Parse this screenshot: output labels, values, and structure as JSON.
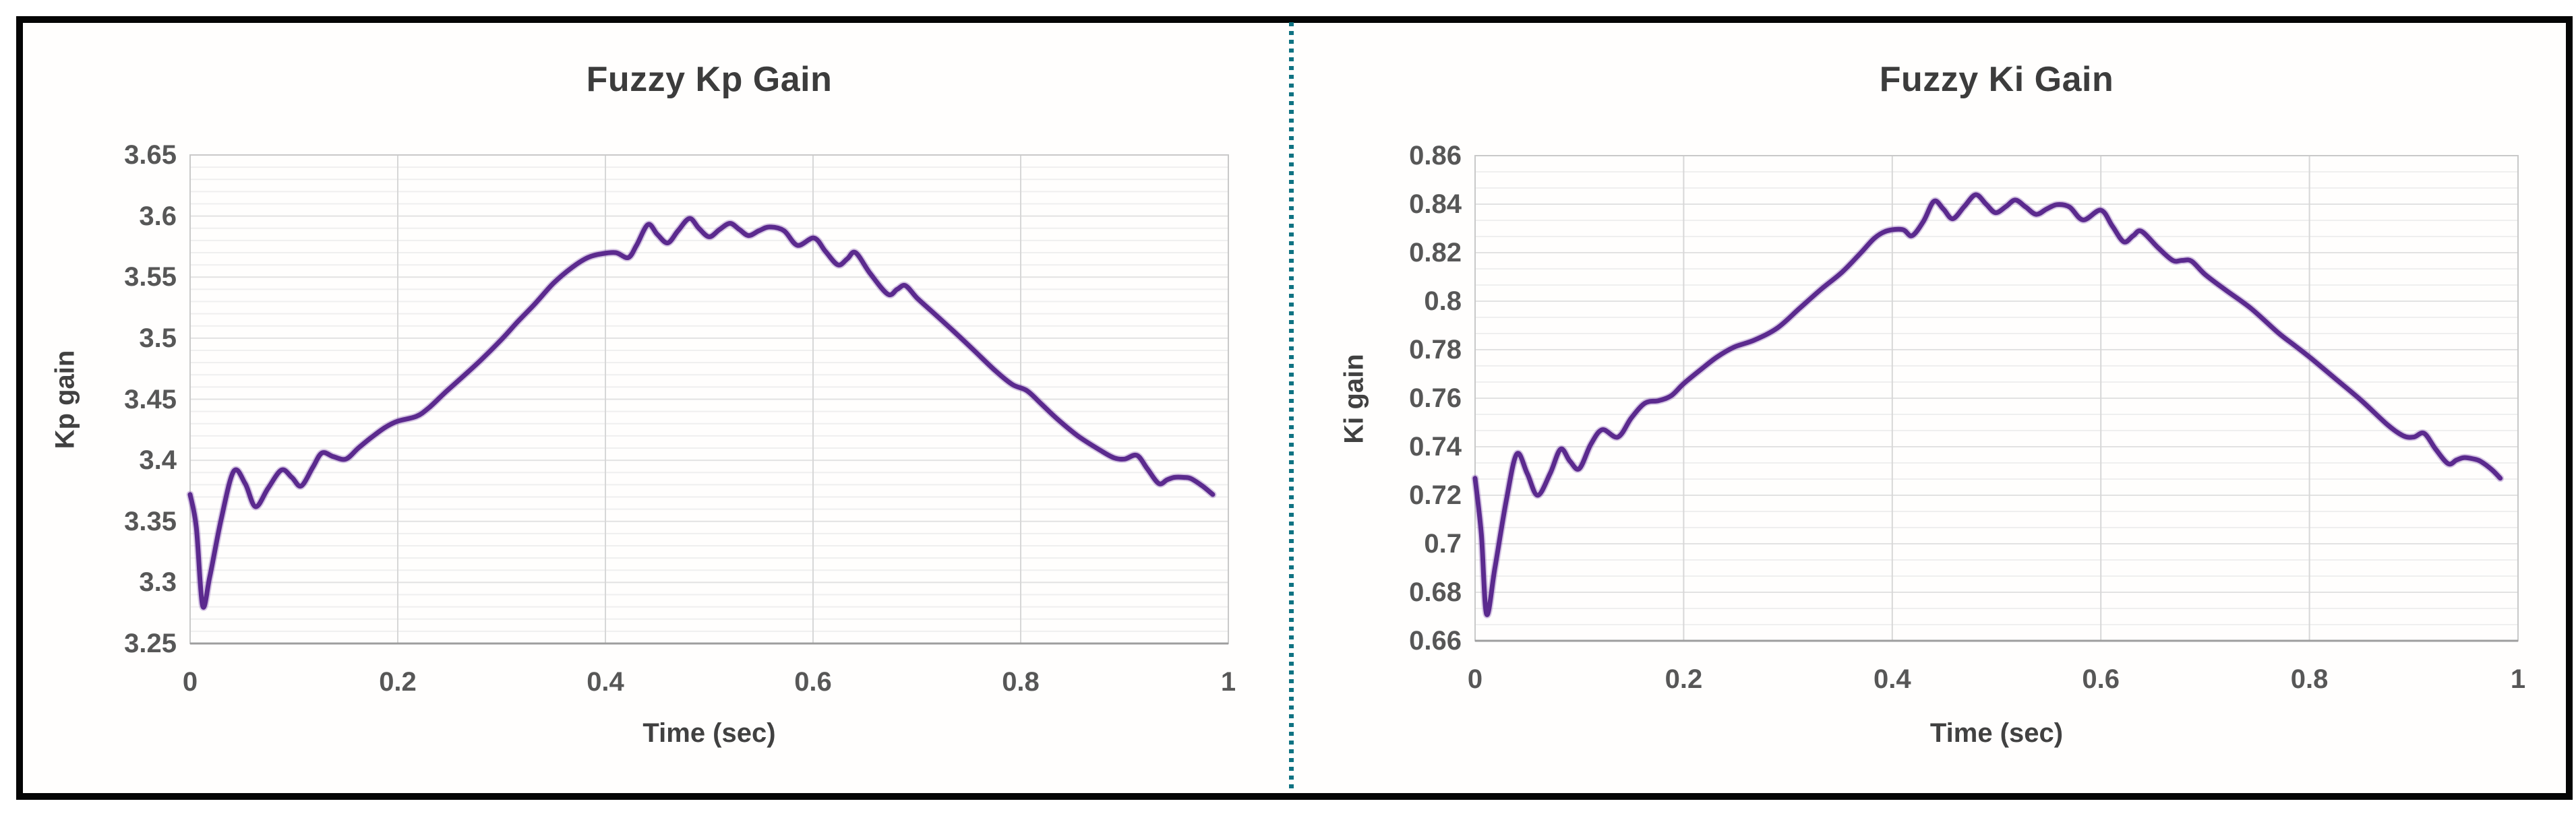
{
  "figure": {
    "background": "#ffffff",
    "border_color": "#050505",
    "divider_color": "#0f7282",
    "divider_style": "dotted-vertical"
  },
  "chart_data": [
    {
      "type": "line",
      "title": "Fuzzy Kp Gain",
      "xlabel": "Time (sec)",
      "ylabel": "Kp gain",
      "xlim": [
        0,
        1
      ],
      "ylim": [
        3.25,
        3.65
      ],
      "x_major_ticks": [
        0,
        0.2,
        0.4,
        0.6,
        0.8,
        1
      ],
      "x_tick_labels": [
        "0",
        "0.2",
        "0.4",
        "0.6",
        "0.8",
        "1"
      ],
      "y_major_step": 0.05,
      "y_minor_divisions": 5,
      "y_tick_labels_top_to_bottom": [
        "3.65",
        "3.6",
        "3.55",
        "3.5",
        "3.45",
        "3.4",
        "3.35",
        "3.3",
        "3.25"
      ],
      "grid": "major+minor horizontal, major vertical",
      "legend": "none",
      "line_color": "#5b2a8e",
      "points": [
        [
          0.0,
          3.372
        ],
        [
          0.006,
          3.345
        ],
        [
          0.012,
          3.281
        ],
        [
          0.019,
          3.305
        ],
        [
          0.03,
          3.352
        ],
        [
          0.042,
          3.391
        ],
        [
          0.053,
          3.381
        ],
        [
          0.063,
          3.362
        ],
        [
          0.075,
          3.377
        ],
        [
          0.088,
          3.392
        ],
        [
          0.098,
          3.386
        ],
        [
          0.107,
          3.379
        ],
        [
          0.118,
          3.394
        ],
        [
          0.127,
          3.406
        ],
        [
          0.138,
          3.403
        ],
        [
          0.15,
          3.401
        ],
        [
          0.162,
          3.41
        ],
        [
          0.175,
          3.419
        ],
        [
          0.188,
          3.427
        ],
        [
          0.2,
          3.432
        ],
        [
          0.218,
          3.436
        ],
        [
          0.23,
          3.443
        ],
        [
          0.245,
          3.455
        ],
        [
          0.262,
          3.468
        ],
        [
          0.28,
          3.482
        ],
        [
          0.3,
          3.499
        ],
        [
          0.315,
          3.513
        ],
        [
          0.332,
          3.528
        ],
        [
          0.35,
          3.545
        ],
        [
          0.368,
          3.558
        ],
        [
          0.383,
          3.566
        ],
        [
          0.396,
          3.569
        ],
        [
          0.41,
          3.57
        ],
        [
          0.422,
          3.566
        ],
        [
          0.43,
          3.576
        ],
        [
          0.441,
          3.593
        ],
        [
          0.45,
          3.585
        ],
        [
          0.46,
          3.578
        ],
        [
          0.47,
          3.588
        ],
        [
          0.481,
          3.598
        ],
        [
          0.49,
          3.59
        ],
        [
          0.5,
          3.583
        ],
        [
          0.51,
          3.589
        ],
        [
          0.52,
          3.594
        ],
        [
          0.529,
          3.589
        ],
        [
          0.538,
          3.584
        ],
        [
          0.548,
          3.588
        ],
        [
          0.558,
          3.591
        ],
        [
          0.572,
          3.588
        ],
        [
          0.585,
          3.576
        ],
        [
          0.601,
          3.582
        ],
        [
          0.612,
          3.571
        ],
        [
          0.624,
          3.56
        ],
        [
          0.633,
          3.565
        ],
        [
          0.641,
          3.57
        ],
        [
          0.655,
          3.553
        ],
        [
          0.672,
          3.536
        ],
        [
          0.681,
          3.54
        ],
        [
          0.689,
          3.543
        ],
        [
          0.7,
          3.533
        ],
        [
          0.713,
          3.523
        ],
        [
          0.735,
          3.506
        ],
        [
          0.755,
          3.49
        ],
        [
          0.776,
          3.473
        ],
        [
          0.792,
          3.462
        ],
        [
          0.806,
          3.457
        ],
        [
          0.82,
          3.446
        ],
        [
          0.835,
          3.434
        ],
        [
          0.855,
          3.42
        ],
        [
          0.877,
          3.408
        ],
        [
          0.89,
          3.402
        ],
        [
          0.9,
          3.401
        ],
        [
          0.912,
          3.404
        ],
        [
          0.922,
          3.393
        ],
        [
          0.933,
          3.381
        ],
        [
          0.941,
          3.384
        ],
        [
          0.948,
          3.386
        ],
        [
          0.957,
          3.386
        ],
        [
          0.964,
          3.385
        ],
        [
          0.975,
          3.379
        ],
        [
          0.985,
          3.372
        ]
      ]
    },
    {
      "type": "line",
      "title": "Fuzzy Ki Gain",
      "xlabel": "Time (sec)",
      "ylabel": "Ki gain",
      "xlim": [
        0,
        1
      ],
      "ylim": [
        0.66,
        0.86
      ],
      "x_major_ticks": [
        0,
        0.2,
        0.4,
        0.6,
        0.8,
        1
      ],
      "x_tick_labels": [
        "0",
        "0.2",
        "0.4",
        "0.6",
        "0.8",
        "1"
      ],
      "y_major_step": 0.02,
      "y_minor_divisions": 3,
      "y_tick_labels_top_to_bottom": [
        "0.86",
        "0.84",
        "0.82",
        "0.8",
        "0.78",
        "0.76",
        "0.74",
        "0.72",
        "0.7",
        "0.68",
        "0.66"
      ],
      "grid": "major+minor horizontal, major vertical",
      "legend": "none",
      "line_color": "#5b2a8e",
      "points": [
        [
          0.0,
          0.727
        ],
        [
          0.006,
          0.704
        ],
        [
          0.011,
          0.671
        ],
        [
          0.019,
          0.69
        ],
        [
          0.03,
          0.718
        ],
        [
          0.04,
          0.737
        ],
        [
          0.05,
          0.729
        ],
        [
          0.06,
          0.72
        ],
        [
          0.072,
          0.729
        ],
        [
          0.082,
          0.739
        ],
        [
          0.091,
          0.734
        ],
        [
          0.1,
          0.731
        ],
        [
          0.111,
          0.741
        ],
        [
          0.122,
          0.747
        ],
        [
          0.137,
          0.744
        ],
        [
          0.15,
          0.752
        ],
        [
          0.163,
          0.758
        ],
        [
          0.176,
          0.759
        ],
        [
          0.188,
          0.761
        ],
        [
          0.2,
          0.766
        ],
        [
          0.217,
          0.772
        ],
        [
          0.232,
          0.777
        ],
        [
          0.248,
          0.781
        ],
        [
          0.268,
          0.784
        ],
        [
          0.29,
          0.789
        ],
        [
          0.311,
          0.797
        ],
        [
          0.332,
          0.805
        ],
        [
          0.352,
          0.812
        ],
        [
          0.37,
          0.82
        ],
        [
          0.383,
          0.826
        ],
        [
          0.395,
          0.829
        ],
        [
          0.41,
          0.8295
        ],
        [
          0.419,
          0.827
        ],
        [
          0.43,
          0.833
        ],
        [
          0.44,
          0.8412
        ],
        [
          0.449,
          0.838
        ],
        [
          0.458,
          0.834
        ],
        [
          0.469,
          0.839
        ],
        [
          0.48,
          0.8439
        ],
        [
          0.49,
          0.84
        ],
        [
          0.499,
          0.8365
        ],
        [
          0.509,
          0.839
        ],
        [
          0.518,
          0.8417
        ],
        [
          0.528,
          0.8388
        ],
        [
          0.538,
          0.8358
        ],
        [
          0.548,
          0.838
        ],
        [
          0.558,
          0.8398
        ],
        [
          0.57,
          0.8388
        ],
        [
          0.583,
          0.8335
        ],
        [
          0.6,
          0.8375
        ],
        [
          0.611,
          0.831
        ],
        [
          0.622,
          0.8245
        ],
        [
          0.631,
          0.827
        ],
        [
          0.639,
          0.8288
        ],
        [
          0.655,
          0.822
        ],
        [
          0.669,
          0.8168
        ],
        [
          0.678,
          0.8168
        ],
        [
          0.687,
          0.8165
        ],
        [
          0.7,
          0.811
        ],
        [
          0.719,
          0.8048
        ],
        [
          0.744,
          0.797
        ],
        [
          0.77,
          0.787
        ],
        [
          0.785,
          0.782
        ],
        [
          0.8,
          0.777
        ],
        [
          0.825,
          0.768
        ],
        [
          0.85,
          0.759
        ],
        [
          0.875,
          0.749
        ],
        [
          0.89,
          0.7445
        ],
        [
          0.9,
          0.744
        ],
        [
          0.91,
          0.7455
        ],
        [
          0.921,
          0.739
        ],
        [
          0.933,
          0.733
        ],
        [
          0.941,
          0.7345
        ],
        [
          0.948,
          0.7355
        ],
        [
          0.957,
          0.735
        ],
        [
          0.964,
          0.734
        ],
        [
          0.975,
          0.7305
        ],
        [
          0.983,
          0.727
        ]
      ]
    }
  ]
}
